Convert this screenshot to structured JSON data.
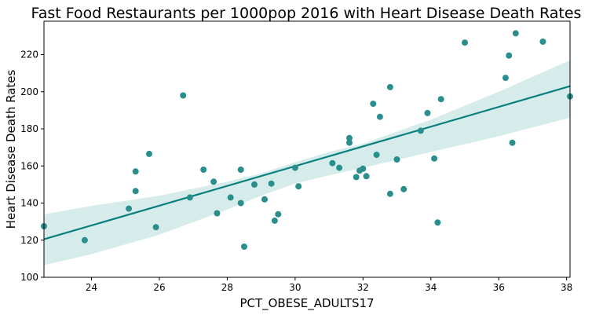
{
  "chart_data": {
    "type": "scatter",
    "title": "Fast Food Restaurants per 1000pop 2016 with Heart Disease Death Rates",
    "xlabel": "PCT_OBESE_ADULTS17",
    "ylabel": "Heart Disease Death Rates",
    "xlim": [
      22.6,
      38.1
    ],
    "ylim": [
      100,
      238
    ],
    "xticks": [
      24,
      26,
      28,
      30,
      32,
      34,
      36,
      38
    ],
    "yticks": [
      100,
      120,
      140,
      160,
      180,
      200,
      220
    ],
    "grid": false,
    "colors": {
      "points": "#2a8f8c",
      "regression_line": "#0b7f7f",
      "confidence_band": "#d6ecea"
    },
    "points": [
      {
        "x": 22.6,
        "y": 127.5
      },
      {
        "x": 23.8,
        "y": 120
      },
      {
        "x": 25.1,
        "y": 137
      },
      {
        "x": 25.3,
        "y": 157
      },
      {
        "x": 25.3,
        "y": 146.5
      },
      {
        "x": 25.7,
        "y": 166.5
      },
      {
        "x": 25.9,
        "y": 127
      },
      {
        "x": 26.7,
        "y": 198
      },
      {
        "x": 26.9,
        "y": 143
      },
      {
        "x": 27.3,
        "y": 158
      },
      {
        "x": 27.6,
        "y": 151.5
      },
      {
        "x": 27.7,
        "y": 134.5
      },
      {
        "x": 28.1,
        "y": 143
      },
      {
        "x": 28.4,
        "y": 158
      },
      {
        "x": 28.4,
        "y": 140
      },
      {
        "x": 28.5,
        "y": 116.5
      },
      {
        "x": 28.8,
        "y": 150
      },
      {
        "x": 29.1,
        "y": 142
      },
      {
        "x": 29.3,
        "y": 150.5
      },
      {
        "x": 29.4,
        "y": 130.5
      },
      {
        "x": 29.5,
        "y": 134
      },
      {
        "x": 30.0,
        "y": 159
      },
      {
        "x": 30.1,
        "y": 149
      },
      {
        "x": 31.1,
        "y": 161.5
      },
      {
        "x": 31.3,
        "y": 159
      },
      {
        "x": 31.6,
        "y": 175
      },
      {
        "x": 31.6,
        "y": 172.5
      },
      {
        "x": 31.8,
        "y": 154
      },
      {
        "x": 31.9,
        "y": 157.5
      },
      {
        "x": 32.0,
        "y": 158.5
      },
      {
        "x": 32.1,
        "y": 154.5
      },
      {
        "x": 32.3,
        "y": 193.5
      },
      {
        "x": 32.4,
        "y": 166
      },
      {
        "x": 32.5,
        "y": 186.5
      },
      {
        "x": 32.8,
        "y": 202.5
      },
      {
        "x": 32.8,
        "y": 145
      },
      {
        "x": 33.0,
        "y": 163.5
      },
      {
        "x": 33.2,
        "y": 147.5
      },
      {
        "x": 33.7,
        "y": 179
      },
      {
        "x": 33.9,
        "y": 188.5
      },
      {
        "x": 34.1,
        "y": 164
      },
      {
        "x": 34.2,
        "y": 129.5
      },
      {
        "x": 34.3,
        "y": 196
      },
      {
        "x": 35.0,
        "y": 226.5
      },
      {
        "x": 36.2,
        "y": 207.5
      },
      {
        "x": 36.3,
        "y": 219.5
      },
      {
        "x": 36.4,
        "y": 172.5
      },
      {
        "x": 36.5,
        "y": 231.5
      },
      {
        "x": 37.3,
        "y": 227
      },
      {
        "x": 38.1,
        "y": 197.5
      }
    ],
    "regression_line": {
      "x": [
        22.6,
        38.1
      ],
      "y": [
        120.5,
        203
      ]
    },
    "confidence_band": {
      "x": [
        22.6,
        24,
        26,
        28,
        29,
        30,
        31,
        32,
        34,
        36,
        38.1
      ],
      "upper": [
        134,
        138.5,
        144,
        151.5,
        156,
        162,
        167.5,
        172,
        185,
        200,
        217
      ],
      "lower": [
        106.5,
        112.5,
        123,
        136.5,
        144,
        150.5,
        155,
        159,
        167.5,
        176,
        186
      ]
    }
  }
}
